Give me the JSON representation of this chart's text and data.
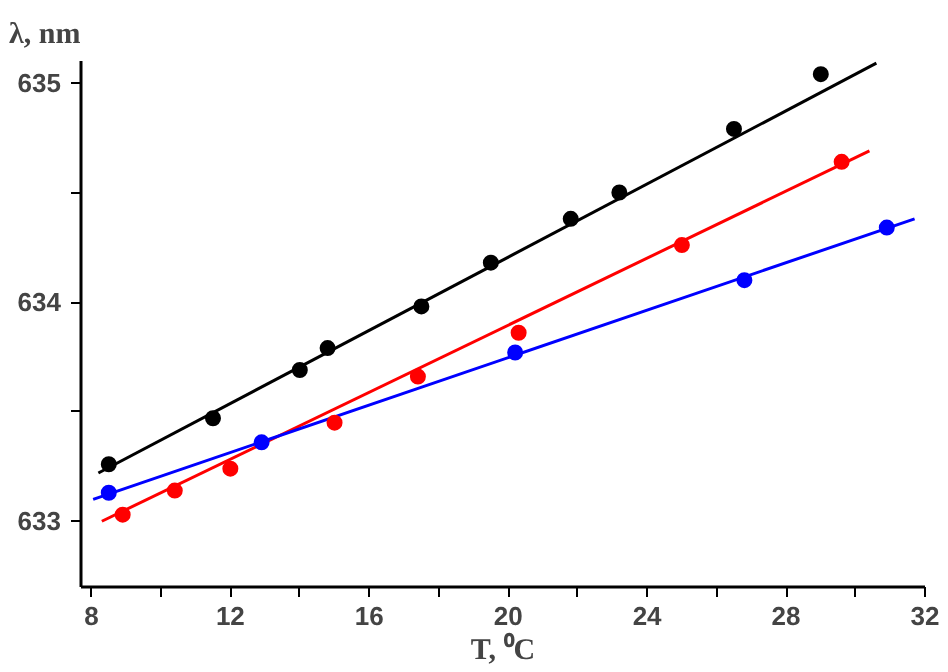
{
  "chart_data": {
    "type": "scatter",
    "xlabel": "T, ⁰C",
    "ylabel": "λ, nm",
    "xlim": [
      7.7,
      32
    ],
    "ylim": [
      632.7,
      635.1
    ],
    "xticks": [
      8,
      {
        "value": 10,
        "label": null
      },
      12,
      {
        "value": 14,
        "label": null
      },
      16,
      {
        "value": 18,
        "label": null
      },
      20,
      {
        "value": 22,
        "label": null
      },
      24,
      {
        "value": 26,
        "label": null
      },
      28,
      {
        "value": 30,
        "label": null
      },
      32
    ],
    "yticks": [
      633,
      {
        "value": 633.5,
        "label": null
      },
      634,
      {
        "value": 634.5,
        "label": null
      },
      635
    ],
    "grid": false,
    "marker": "circle",
    "series": [
      {
        "type": "line",
        "marker": "none",
        "color": "#000000",
        "x": [
          8.2,
          30.6
        ],
        "values": [
          633.22,
          635.09
        ]
      },
      {
        "type": "line",
        "marker": "none",
        "color": "#ff0000",
        "x": [
          8.3,
          30.4
        ],
        "values": [
          633.0,
          634.69
        ]
      },
      {
        "type": "line",
        "marker": "none",
        "color": "#0000ff",
        "x": [
          8.05,
          31.7
        ],
        "values": [
          633.1,
          634.38
        ]
      },
      {
        "color": "#000000",
        "x": [
          8.5,
          11.5,
          14.0,
          14.8,
          17.5,
          19.5,
          21.8,
          23.2,
          26.5,
          29.0
        ],
        "values": [
          633.26,
          633.47,
          633.69,
          633.79,
          633.98,
          634.18,
          634.38,
          634.5,
          634.79,
          635.04
        ]
      },
      {
        "color": "#ff0000",
        "x": [
          8.9,
          10.4,
          12.0,
          15.0,
          17.4,
          20.3,
          25.0,
          29.6
        ],
        "values": [
          633.03,
          633.14,
          633.24,
          633.45,
          633.66,
          633.86,
          634.26,
          634.64
        ]
      },
      {
        "color": "#0000ff",
        "x": [
          8.5,
          12.9,
          20.2,
          26.8,
          30.9
        ],
        "values": [
          633.13,
          633.36,
          633.77,
          634.1,
          634.34
        ]
      }
    ]
  }
}
